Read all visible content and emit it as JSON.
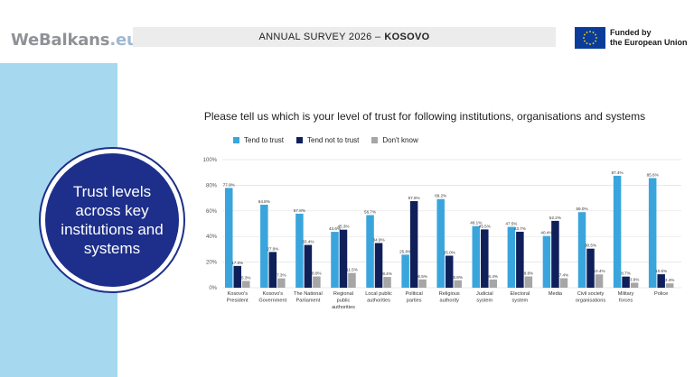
{
  "header": {
    "logo_main": "WeBalkans",
    "logo_domain": ".eu",
    "survey_title": "ANNUAL SURVEY 2026 –",
    "survey_country": "KOSOVO",
    "funding_line1": "Funded by",
    "funding_line2": "the European Union"
  },
  "side": {
    "heading": "Trust levels across key institutions and systems"
  },
  "colors": {
    "trust": "#3aa5dc",
    "not_trust": "#0f1f5a",
    "dont_know": "#a6a6a6",
    "panel": "#a6d9ef",
    "circle": "#1d2f8a"
  },
  "chart_data": {
    "type": "bar",
    "title": "Please tell us which is your level of trust for following institutions, organisations and systems",
    "ylim": [
      0,
      100
    ],
    "yticks": [
      "0%",
      "20%",
      "40%",
      "60%",
      "80%",
      "100%"
    ],
    "legend_position": "top",
    "categories": [
      [
        "Kosovo's",
        "President"
      ],
      [
        "Kosovo's",
        "Government"
      ],
      [
        "The National",
        "Parliament"
      ],
      [
        "Regional",
        "public",
        "authorities"
      ],
      [
        "Local public",
        "authorities"
      ],
      [
        "Political",
        "parties"
      ],
      [
        "Religious",
        "authority"
      ],
      [
        "Judicial",
        "system"
      ],
      [
        "Electoral",
        "system"
      ],
      [
        "Media"
      ],
      [
        "Civil society",
        "organisations"
      ],
      [
        "Military",
        "forces"
      ],
      [
        "Police"
      ]
    ],
    "series": [
      {
        "name": "Tend to trust",
        "values": [
          77.9,
          64.8,
          57.8,
          43.6,
          56.7,
          25.8,
          69.2,
          48.1,
          47.5,
          40.4,
          59.0,
          87.4,
          85.6
        ]
      },
      {
        "name": "Tend not to trust",
        "values": [
          17.0,
          27.9,
          33.4,
          45.3,
          34.9,
          67.6,
          25.0,
          45.5,
          43.7,
          52.2,
          30.5,
          8.7,
          10.5
        ]
      },
      {
        "name": "Don't know",
        "values": [
          5.3,
          7.3,
          8.8,
          11.5,
          8.4,
          6.5,
          5.8,
          6.4,
          8.8,
          7.4,
          10.4,
          3.9,
          3.4
        ]
      }
    ],
    "value_labels": [
      [
        "77.9%",
        "64.8%",
        "57.8%",
        "43.6%",
        "56.7%",
        "25.8%",
        "69.2%",
        "48.1%",
        "47.5%",
        "40.4%",
        "59.0%",
        "87.4%",
        "85.6%"
      ],
      [
        "17.0%",
        "27.9%",
        "33.4%",
        "45.3%",
        "34.9%",
        "67.6%",
        "25.0%",
        "45.5%",
        "43.7%",
        "52.2%",
        "30.5%",
        "8.7%",
        "10.5%"
      ],
      [
        "5.3%",
        "7.3%",
        "8.8%",
        "11.5%",
        "8.4%",
        "6.5%",
        "5.8%",
        "6.4%",
        "8.8%",
        "7.4%",
        "10.4%",
        "3.9%",
        "3.4%"
      ]
    ]
  }
}
